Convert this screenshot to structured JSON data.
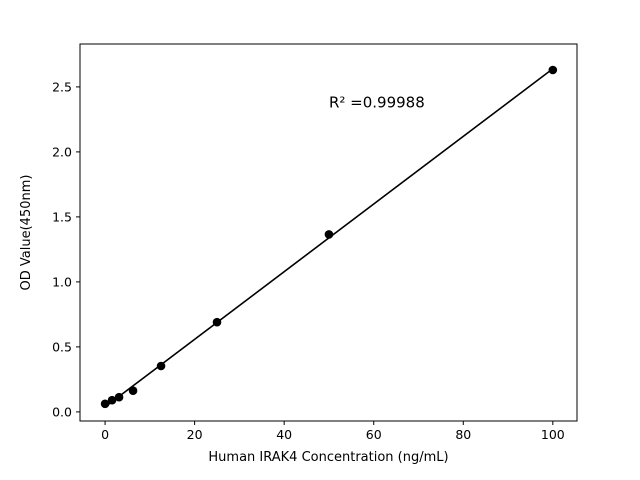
{
  "chart_data": {
    "type": "scatter",
    "title": "",
    "xlabel": "Human IRAK4 Concentration (ng/mL)",
    "ylabel": "OD Value(450nm)",
    "x": [
      0,
      1.5625,
      3.125,
      6.25,
      12.5,
      25,
      50,
      100
    ],
    "y": [
      0.062,
      0.09,
      0.113,
      0.163,
      0.353,
      0.69,
      1.365,
      2.63
    ],
    "fit": {
      "type": "linear",
      "label": "R² =0.99988"
    },
    "annotation": {
      "text": "R² =0.99988",
      "x": 50,
      "y": 2.38
    },
    "x_ticks": [
      0,
      20,
      40,
      60,
      80,
      100
    ],
    "y_ticks": [
      0.0,
      0.5,
      1.0,
      1.5,
      2.0,
      2.5
    ],
    "xlim": [
      -5.6,
      105.4
    ],
    "ylim": [
      -0.07,
      2.83
    ],
    "grid": false,
    "legend": "none",
    "marker_color": "#000000",
    "line_color": "#000000",
    "background_color": "#ffffff"
  }
}
